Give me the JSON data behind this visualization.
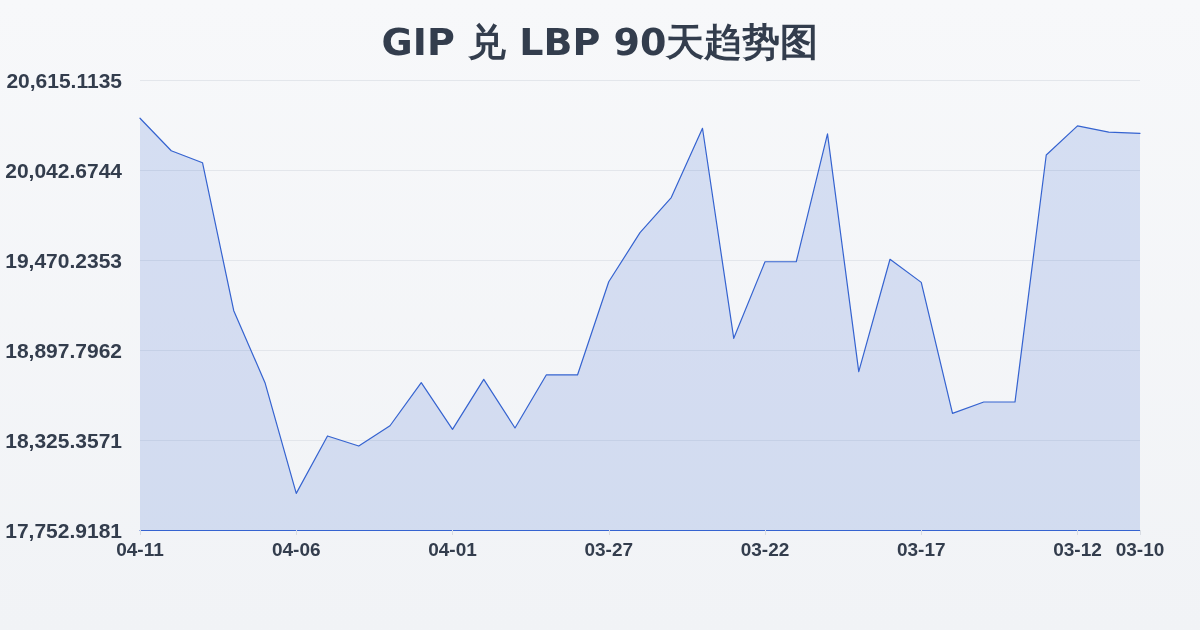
{
  "chart_data": {
    "type": "area",
    "title": "GIP 兑 LBP 90天趋势图",
    "categories": [
      "04-11",
      null,
      null,
      null,
      null,
      "04-06",
      null,
      null,
      null,
      null,
      "04-01",
      null,
      null,
      null,
      null,
      "03-27",
      null,
      null,
      null,
      null,
      "03-22",
      null,
      null,
      null,
      null,
      "03-17",
      null,
      null,
      null,
      null,
      "03-12",
      null,
      "03-10"
    ],
    "values": [
      20372,
      20165,
      20089,
      19148,
      18690,
      17986,
      18351,
      18287,
      18416,
      18690,
      18393,
      18711,
      18402,
      18739,
      18739,
      19332,
      19644,
      19867,
      20308,
      18972,
      19459,
      19459,
      20272,
      18760,
      19475,
      19328,
      18495,
      18567,
      18567,
      20138,
      20323,
      20284,
      20276
    ],
    "color": "#3563d0",
    "ylim": [
      17752.9181,
      20615.1135
    ],
    "yticks": [
      {
        "value": 17752.9181,
        "label": "17,752.9181"
      },
      {
        "value": 18325.3571,
        "label": "18,325.3571"
      },
      {
        "value": 18897.7962,
        "label": "18,897.7962"
      },
      {
        "value": 19470.2353,
        "label": "19,470.2353"
      },
      {
        "value": 20042.6744,
        "label": "20,042.6744"
      },
      {
        "value": 20615.1135,
        "label": "20,615.1135"
      }
    ],
    "grid": "y",
    "marker": "none"
  }
}
